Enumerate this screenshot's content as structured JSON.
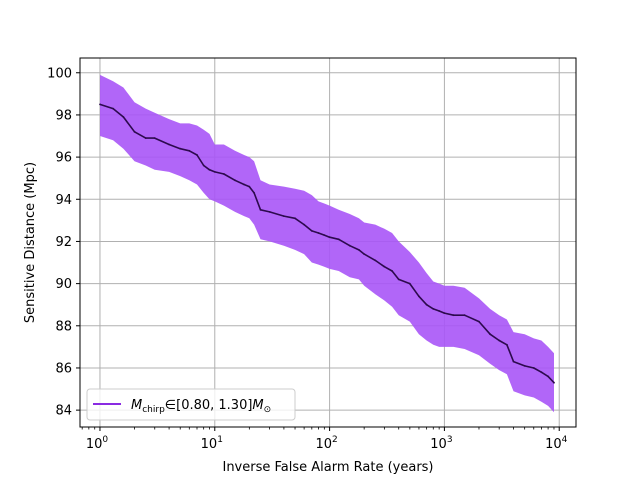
{
  "chart_data": {
    "type": "line",
    "title": "",
    "xlabel": "Inverse False Alarm Rate (years)",
    "ylabel": "Sensitive Distance (Mpc)",
    "xscale": "log",
    "xlim": [
      0.67,
      14000
    ],
    "ylim": [
      83.2,
      100.7
    ],
    "grid": true,
    "legend_placement": "lower-left",
    "x_ticks": [
      {
        "value": 1,
        "base": "10",
        "exp": "0"
      },
      {
        "value": 10,
        "base": "10",
        "exp": "1"
      },
      {
        "value": 100,
        "base": "10",
        "exp": "2"
      },
      {
        "value": 1000,
        "base": "10",
        "exp": "3"
      },
      {
        "value": 10000,
        "base": "10",
        "exp": "4"
      }
    ],
    "y_ticks": [
      84,
      86,
      88,
      90,
      92,
      94,
      96,
      98,
      100
    ],
    "legend": {
      "symbol": "M",
      "subscript": "chirp",
      "range_text": "∈[0.80, 1.30]",
      "unit_symbol": "M",
      "unit_subscript": "⊙"
    },
    "series": [
      {
        "name": "M_chirp ∈ [0.80, 1.30] M_⊙",
        "line_color": "#2d0a4e",
        "band_color": "#a855f7",
        "x": [
          1,
          1.3,
          1.6,
          2,
          2.5,
          3,
          4,
          5,
          6,
          7,
          8,
          9,
          10,
          12,
          15,
          18,
          20,
          22,
          25,
          30,
          40,
          50,
          60,
          70,
          80,
          90,
          100,
          120,
          150,
          180,
          200,
          250,
          300,
          350,
          400,
          500,
          600,
          700,
          800,
          900,
          1000,
          1200,
          1500,
          2000,
          2500,
          3000,
          3500,
          4000,
          5000,
          6000,
          7000,
          8000,
          9000
        ],
        "y": [
          98.5,
          98.3,
          97.9,
          97.2,
          96.9,
          96.9,
          96.6,
          96.4,
          96.3,
          96.1,
          95.6,
          95.4,
          95.3,
          95.2,
          94.9,
          94.7,
          94.6,
          94.3,
          93.5,
          93.4,
          93.2,
          93.1,
          92.8,
          92.5,
          92.4,
          92.3,
          92.2,
          92.1,
          91.8,
          91.6,
          91.4,
          91.1,
          90.8,
          90.6,
          90.2,
          90.0,
          89.4,
          89.0,
          88.8,
          88.7,
          88.6,
          88.5,
          88.5,
          88.2,
          87.6,
          87.3,
          87.1,
          86.3,
          86.1,
          86.0,
          85.8,
          85.6,
          85.3
        ],
        "y_upper": [
          99.9,
          99.6,
          99.3,
          98.6,
          98.3,
          98.1,
          97.8,
          97.6,
          97.6,
          97.5,
          97.3,
          97.1,
          96.6,
          96.6,
          96.3,
          96.1,
          96.0,
          95.8,
          94.9,
          94.7,
          94.6,
          94.5,
          94.4,
          94.2,
          93.9,
          93.8,
          93.7,
          93.5,
          93.3,
          93.1,
          92.9,
          92.8,
          92.6,
          92.4,
          92.0,
          91.5,
          91.0,
          90.5,
          90.1,
          90.0,
          89.9,
          89.9,
          89.8,
          89.3,
          88.8,
          88.5,
          88.3,
          87.7,
          87.6,
          87.4,
          87.3,
          87.0,
          86.7
        ],
        "y_lower": [
          97.0,
          96.8,
          96.4,
          95.8,
          95.6,
          95.4,
          95.3,
          95.1,
          94.9,
          94.7,
          94.3,
          94.0,
          93.9,
          93.7,
          93.4,
          93.2,
          93.1,
          92.8,
          92.1,
          92.0,
          91.8,
          91.6,
          91.4,
          91.0,
          90.9,
          90.8,
          90.7,
          90.6,
          90.3,
          90.2,
          89.9,
          89.5,
          89.2,
          88.9,
          88.5,
          88.2,
          87.6,
          87.3,
          87.1,
          87.0,
          87.0,
          87.0,
          86.9,
          86.6,
          86.2,
          85.9,
          85.7,
          84.9,
          84.7,
          84.6,
          84.4,
          84.2,
          83.9
        ]
      }
    ]
  }
}
